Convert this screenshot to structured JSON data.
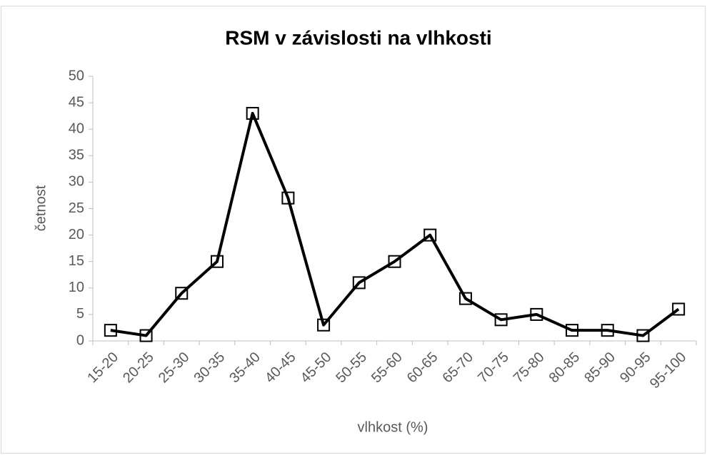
{
  "chart_data": {
    "type": "line",
    "title": "RSM v závislosti na vlhkosti",
    "x_label": "vlhkost (%)",
    "y_label": "četnost",
    "categories": [
      "15-20",
      "20-25",
      "25-30",
      "30-35",
      "35-40",
      "40-45",
      "45-50",
      "50-55",
      "55-60",
      "60-65",
      "65-70",
      "70-75",
      "75-80",
      "80-85",
      "85-90",
      "90-95",
      "95-100"
    ],
    "series": [
      {
        "name": "RSM",
        "color": "#000000",
        "values": [
          2,
          1,
          9,
          15,
          43,
          27,
          3,
          11,
          15,
          20,
          8,
          4,
          5,
          2,
          2,
          1,
          6
        ]
      }
    ],
    "ylim": [
      0,
      50
    ],
    "yticks": [
      0,
      5,
      10,
      15,
      20,
      25,
      30,
      35,
      40,
      45,
      50
    ]
  }
}
